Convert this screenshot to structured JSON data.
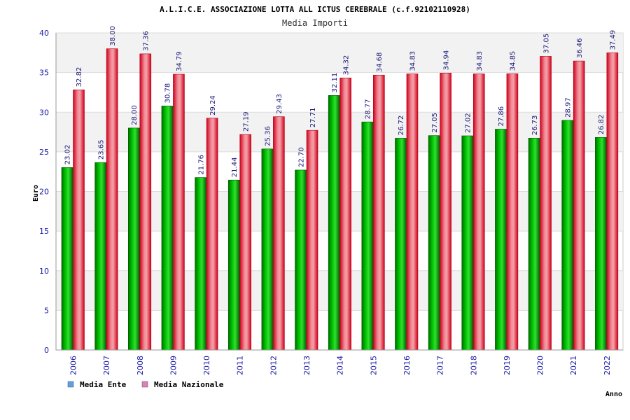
{
  "chart_data": {
    "type": "bar",
    "title": "A.L.I.C.E. ASSOCIAZIONE LOTTA ALL ICTUS CEREBRALE (c.f.92102110928)",
    "subtitle": "Media Importi",
    "xlabel": "Anno",
    "ylabel": "Euro",
    "ylim": [
      0,
      40
    ],
    "yticks": [
      0,
      5,
      10,
      15,
      20,
      25,
      30,
      35,
      40
    ],
    "grid": true,
    "legend_position": "bottom-left",
    "categories": [
      "2006",
      "2007",
      "2008",
      "2009",
      "2010",
      "2011",
      "2012",
      "2013",
      "2014",
      "2015",
      "2016",
      "2017",
      "2018",
      "2019",
      "2020",
      "2021",
      "2022"
    ],
    "series": [
      {
        "name": "Media Ente",
        "color": "#00a000",
        "legend_color": "#5c9ee8",
        "values": [
          23.02,
          23.65,
          28.0,
          30.78,
          21.76,
          21.44,
          25.36,
          22.7,
          32.11,
          28.77,
          26.72,
          27.05,
          27.02,
          27.86,
          26.73,
          28.97,
          26.82
        ],
        "labels": [
          "23.02",
          "23.65",
          "28.00",
          "30.78",
          "21.76",
          "21.44",
          "25.36",
          "22.70",
          "32.11",
          "28.77",
          "26.72",
          "27.05",
          "27.02",
          "27.86",
          "26.73",
          "28.97",
          "26.82"
        ]
      },
      {
        "name": "Media Nazionale",
        "color": "#e8192c",
        "legend_color": "#e080b8",
        "values": [
          32.82,
          38.0,
          37.36,
          34.79,
          29.24,
          27.19,
          29.43,
          27.71,
          34.32,
          34.68,
          34.83,
          34.94,
          34.83,
          34.85,
          37.05,
          36.46,
          37.49
        ],
        "labels": [
          "32.82",
          "38.00",
          "37.36",
          "34.79",
          "29.24",
          "27.19",
          "29.43",
          "27.71",
          "34.32",
          "34.68",
          "34.83",
          "34.94",
          "34.83",
          "34.85",
          "37.05",
          "36.46",
          "37.49"
        ]
      }
    ]
  }
}
